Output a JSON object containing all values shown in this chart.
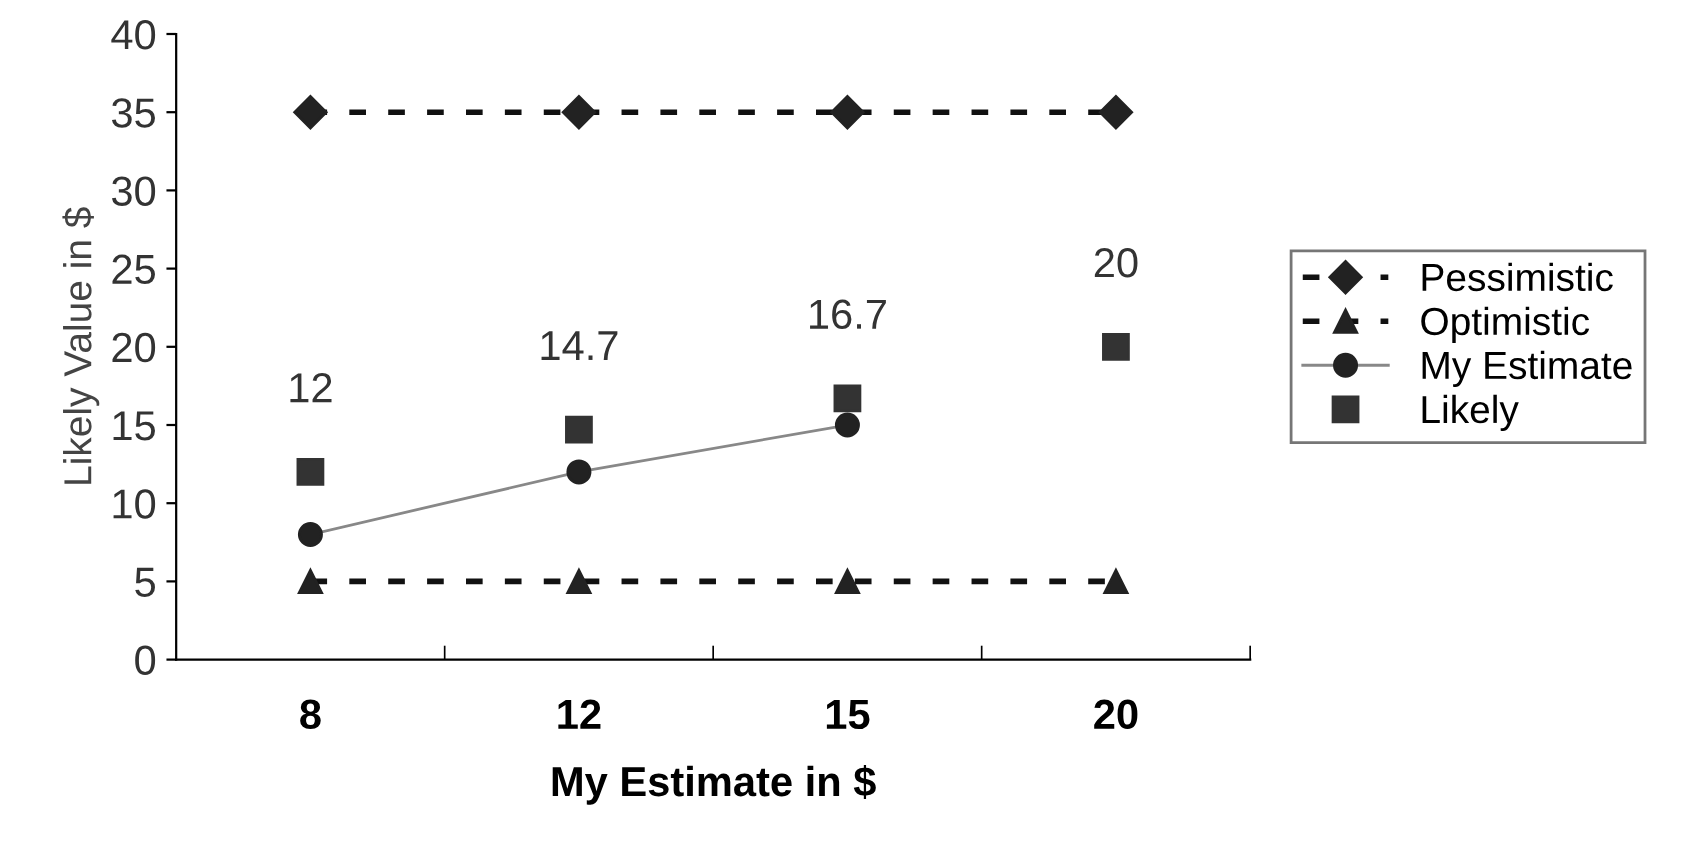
{
  "chart_data": {
    "type": "line",
    "xlabel": "My Estimate in $",
    "ylabel": "Likely Value in $",
    "categories": [
      "8",
      "12",
      "15",
      "20"
    ],
    "ylim": [
      0,
      40
    ],
    "yticks": [
      0,
      5,
      10,
      15,
      20,
      25,
      30,
      35,
      40
    ],
    "grid": false,
    "legend": "right",
    "series": [
      {
        "name": "Pessimistic",
        "color": "#111111",
        "values": [
          35,
          35,
          35,
          35
        ],
        "marker": "diamond",
        "line_style": "dashed"
      },
      {
        "name": "Optimistic",
        "color": "#111111",
        "values": [
          5,
          5,
          5,
          5
        ],
        "marker": "triangle",
        "line_style": "dashed"
      },
      {
        "name": "My Estimate",
        "color": "#888888",
        "values": [
          8,
          12,
          15,
          null
        ],
        "marker": "circle",
        "line_style": "solid"
      },
      {
        "name": "Likely",
        "type": "scatter",
        "color": "#333333",
        "values": [
          12,
          14.7,
          16.7,
          20
        ],
        "marker": "square",
        "data_labels": true
      }
    ]
  }
}
